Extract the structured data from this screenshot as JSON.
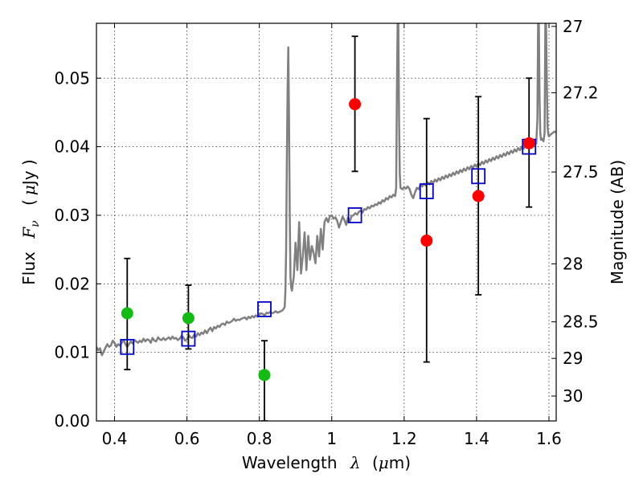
{
  "chart_data": {
    "type": "scatter",
    "xlabel": "Wavelength",
    "xlabel_symbol": "λ",
    "xlabel_unit_prefix": "(",
    "xlabel_unit_mu": "μ",
    "xlabel_unit_suffix": "m)",
    "ylabel": "Flux",
    "ylabel_symbol": "F",
    "ylabel_subscript": "ν",
    "ylabel_unit_prefix": "(",
    "ylabel_unit_mu": "μ",
    "ylabel_unit_suffix": "Jy )",
    "right_ylabel": "Magnitude (AB)",
    "xlim": [
      0.35,
      1.62
    ],
    "ylim": [
      0.0,
      0.058
    ],
    "grid": true,
    "xticks": [
      {
        "value": 0.4,
        "label": "0.4"
      },
      {
        "value": 0.6,
        "label": "0.6"
      },
      {
        "value": 0.8,
        "label": "0.8"
      },
      {
        "value": 1.0,
        "label": "1"
      },
      {
        "value": 1.2,
        "label": "1.2"
      },
      {
        "value": 1.4,
        "label": "1.4"
      },
      {
        "value": 1.6,
        "label": "1.6"
      }
    ],
    "yticks": [
      {
        "value": 0.0,
        "label": "0.00"
      },
      {
        "value": 0.01,
        "label": "0.01"
      },
      {
        "value": 0.02,
        "label": "0.02"
      },
      {
        "value": 0.03,
        "label": "0.03"
      },
      {
        "value": 0.04,
        "label": "0.04"
      },
      {
        "value": 0.05,
        "label": "0.05"
      }
    ],
    "magnitude_ticks": [
      {
        "value": 27,
        "label": "27"
      },
      {
        "value": 27.2,
        "label": "27.2"
      },
      {
        "value": 27.5,
        "label": "27.5"
      },
      {
        "value": 28,
        "label": "28"
      },
      {
        "value": 28.5,
        "label": "28.5"
      },
      {
        "value": 29,
        "label": "29"
      },
      {
        "value": 30,
        "label": "30"
      }
    ],
    "colors": {
      "model": "#808080",
      "model_photometry": "#0000cc",
      "green_points": "#12bc12",
      "red_points": "#ff0000",
      "error_bars": "#000000"
    },
    "series": [
      {
        "name": "Model spectrum",
        "kind": "line",
        "x": [
          0.35,
          0.355,
          0.36,
          0.365,
          0.37,
          0.375,
          0.38,
          0.385,
          0.39,
          0.395,
          0.4,
          0.405,
          0.41,
          0.415,
          0.42,
          0.425,
          0.43,
          0.435,
          0.44,
          0.445,
          0.45,
          0.455,
          0.46,
          0.465,
          0.47,
          0.475,
          0.48,
          0.485,
          0.49,
          0.495,
          0.5,
          0.505,
          0.51,
          0.515,
          0.52,
          0.525,
          0.53,
          0.535,
          0.54,
          0.545,
          0.55,
          0.555,
          0.56,
          0.565,
          0.57,
          0.575,
          0.58,
          0.585,
          0.59,
          0.595,
          0.6,
          0.605,
          0.61,
          0.615,
          0.62,
          0.625,
          0.63,
          0.635,
          0.64,
          0.645,
          0.65,
          0.655,
          0.66,
          0.665,
          0.67,
          0.675,
          0.68,
          0.685,
          0.69,
          0.695,
          0.7,
          0.705,
          0.71,
          0.715,
          0.72,
          0.725,
          0.73,
          0.735,
          0.74,
          0.745,
          0.75,
          0.755,
          0.76,
          0.765,
          0.77,
          0.775,
          0.78,
          0.785,
          0.79,
          0.795,
          0.8,
          0.805,
          0.81,
          0.815,
          0.82,
          0.825,
          0.83,
          0.835,
          0.84,
          0.845,
          0.85,
          0.855,
          0.86,
          0.865,
          0.87,
          0.872,
          0.874,
          0.876,
          0.878,
          0.88,
          0.882,
          0.884,
          0.886,
          0.888,
          0.89,
          0.895,
          0.9,
          0.905,
          0.91,
          0.915,
          0.92,
          0.925,
          0.93,
          0.935,
          0.94,
          0.945,
          0.95,
          0.955,
          0.96,
          0.965,
          0.97,
          0.975,
          0.98,
          0.985,
          0.99,
          0.995,
          1.0,
          1.005,
          1.01,
          1.015,
          1.02,
          1.025,
          1.03,
          1.035,
          1.04,
          1.045,
          1.05,
          1.055,
          1.06,
          1.065,
          1.07,
          1.075,
          1.08,
          1.085,
          1.09,
          1.095,
          1.1,
          1.105,
          1.11,
          1.115,
          1.12,
          1.125,
          1.13,
          1.135,
          1.14,
          1.145,
          1.15,
          1.155,
          1.16,
          1.165,
          1.17,
          1.175,
          1.178,
          1.18,
          1.182,
          1.184,
          1.186,
          1.188,
          1.19,
          1.195,
          1.2,
          1.205,
          1.21,
          1.215,
          1.22,
          1.225,
          1.23,
          1.235,
          1.24,
          1.245,
          1.25,
          1.255,
          1.26,
          1.265,
          1.27,
          1.275,
          1.28,
          1.285,
          1.29,
          1.295,
          1.3,
          1.305,
          1.31,
          1.315,
          1.32,
          1.325,
          1.33,
          1.335,
          1.34,
          1.345,
          1.35,
          1.355,
          1.36,
          1.365,
          1.37,
          1.375,
          1.38,
          1.385,
          1.39,
          1.395,
          1.4,
          1.405,
          1.41,
          1.415,
          1.42,
          1.425,
          1.43,
          1.435,
          1.44,
          1.445,
          1.45,
          1.455,
          1.46,
          1.465,
          1.47,
          1.475,
          1.48,
          1.485,
          1.49,
          1.495,
          1.5,
          1.505,
          1.51,
          1.515,
          1.52,
          1.525,
          1.53,
          1.535,
          1.54,
          1.545,
          1.55,
          1.555,
          1.56,
          1.565,
          1.568,
          1.57,
          1.572,
          1.574,
          1.576,
          1.578,
          1.58,
          1.585,
          1.588,
          1.59,
          1.592,
          1.594,
          1.596,
          1.598,
          1.6,
          1.605,
          1.61,
          1.615,
          1.62
        ],
        "y": [
          0.0108,
          0.0103,
          0.0106,
          0.0096,
          0.0101,
          0.0107,
          0.0112,
          0.0108,
          0.011,
          0.0117,
          0.0114,
          0.0108,
          0.0112,
          0.011,
          0.0114,
          0.0118,
          0.0112,
          0.0108,
          0.0112,
          0.0116,
          0.0113,
          0.0118,
          0.0116,
          0.0114,
          0.0117,
          0.0115,
          0.012,
          0.0116,
          0.0119,
          0.0118,
          0.0114,
          0.0121,
          0.0117,
          0.0116,
          0.0122,
          0.0119,
          0.0118,
          0.0121,
          0.0118,
          0.012,
          0.0122,
          0.0119,
          0.0123,
          0.012,
          0.0121,
          0.0118,
          0.012,
          0.0124,
          0.0122,
          0.0117,
          0.0119,
          0.0125,
          0.0122,
          0.0121,
          0.0126,
          0.0123,
          0.0128,
          0.0125,
          0.0129,
          0.0127,
          0.0132,
          0.0128,
          0.0133,
          0.0136,
          0.0131,
          0.0137,
          0.0135,
          0.0139,
          0.0137,
          0.0141,
          0.0142,
          0.014,
          0.0145,
          0.0143,
          0.0144,
          0.0146,
          0.0149,
          0.0146,
          0.0148,
          0.0147,
          0.0149,
          0.015,
          0.0151,
          0.0148,
          0.0152,
          0.015,
          0.0153,
          0.0151,
          0.0154,
          0.0152,
          0.0155,
          0.0157,
          0.0156,
          0.0154,
          0.0158,
          0.0157,
          0.0159,
          0.0157,
          0.0158,
          0.016,
          0.0158,
          0.0159,
          0.016,
          0.0162,
          0.0166,
          0.019,
          0.025,
          0.038,
          0.048,
          0.0545,
          0.044,
          0.03,
          0.021,
          0.0195,
          0.019,
          0.021,
          0.026,
          0.022,
          0.029,
          0.0215,
          0.024,
          0.0275,
          0.022,
          0.027,
          0.0235,
          0.0255,
          0.0245,
          0.023,
          0.027,
          0.024,
          0.028,
          0.025,
          0.029,
          0.0296,
          0.029,
          0.0299,
          0.03,
          0.0295,
          0.0297,
          0.0292,
          0.0282,
          0.029,
          0.0298,
          0.0293,
          0.0286,
          0.0297,
          0.0291,
          0.0299,
          0.03,
          0.0303,
          0.0301,
          0.0305,
          0.0307,
          0.0304,
          0.0309,
          0.0308,
          0.0312,
          0.031,
          0.0314,
          0.0313,
          0.0316,
          0.0315,
          0.0319,
          0.0317,
          0.0322,
          0.032,
          0.0325,
          0.0323,
          0.0328,
          0.0326,
          0.033,
          0.0328,
          0.034,
          0.048,
          0.058,
          0.058,
          0.044,
          0.036,
          0.034,
          0.0338,
          0.0341,
          0.0339,
          0.0342,
          0.0338,
          0.033,
          0.0325,
          0.0333,
          0.034,
          0.0338,
          0.0344,
          0.0342,
          0.0346,
          0.0343,
          0.0348,
          0.0345,
          0.035,
          0.0347,
          0.0352,
          0.0349,
          0.0354,
          0.0351,
          0.0356,
          0.0353,
          0.0358,
          0.0355,
          0.036,
          0.0357,
          0.0362,
          0.0359,
          0.0364,
          0.0361,
          0.0366,
          0.0363,
          0.0368,
          0.0365,
          0.037,
          0.0367,
          0.0372,
          0.0369,
          0.0374,
          0.0371,
          0.0376,
          0.0373,
          0.0378,
          0.0375,
          0.038,
          0.0377,
          0.0382,
          0.0379,
          0.0384,
          0.0381,
          0.0386,
          0.0383,
          0.0388,
          0.0385,
          0.039,
          0.0387,
          0.0392,
          0.0389,
          0.0394,
          0.0391,
          0.0396,
          0.0393,
          0.0398,
          0.0395,
          0.04,
          0.0397,
          0.0402,
          0.0399,
          0.0404,
          0.0401,
          0.0406,
          0.0403,
          0.0405,
          0.044,
          0.058,
          0.058,
          0.047,
          0.042,
          0.041,
          0.0412,
          0.0408,
          0.042,
          0.058,
          0.058,
          0.05,
          0.043,
          0.0418,
          0.0415,
          0.0418,
          0.042,
          0.0422,
          0.0421
        ]
      },
      {
        "name": "Model photometry",
        "kind": "open-square",
        "x": [
          0.435,
          0.604,
          0.814,
          1.064,
          1.262,
          1.405,
          1.545
        ],
        "y": [
          0.0108,
          0.012,
          0.0163,
          0.03,
          0.0335,
          0.0357,
          0.04
        ]
      },
      {
        "name": "Green detections",
        "kind": "filled-circle",
        "x": [
          0.435,
          0.604,
          0.814
        ],
        "y": [
          0.0157,
          0.015,
          0.0067
        ],
        "yerr_low": [
          0.0082,
          0.0045,
          0.0067
        ],
        "yerr_high": [
          0.008,
          0.0048,
          0.005
        ]
      },
      {
        "name": "Red detections",
        "kind": "filled-circle",
        "x": [
          1.064,
          1.262,
          1.405,
          1.545
        ],
        "y": [
          0.0462,
          0.0263,
          0.0328,
          0.0405
        ],
        "yerr_low": [
          0.0098,
          0.0177,
          0.0144,
          0.0093
        ],
        "yerr_high": [
          0.0099,
          0.0178,
          0.0145,
          0.0095
        ]
      }
    ]
  }
}
